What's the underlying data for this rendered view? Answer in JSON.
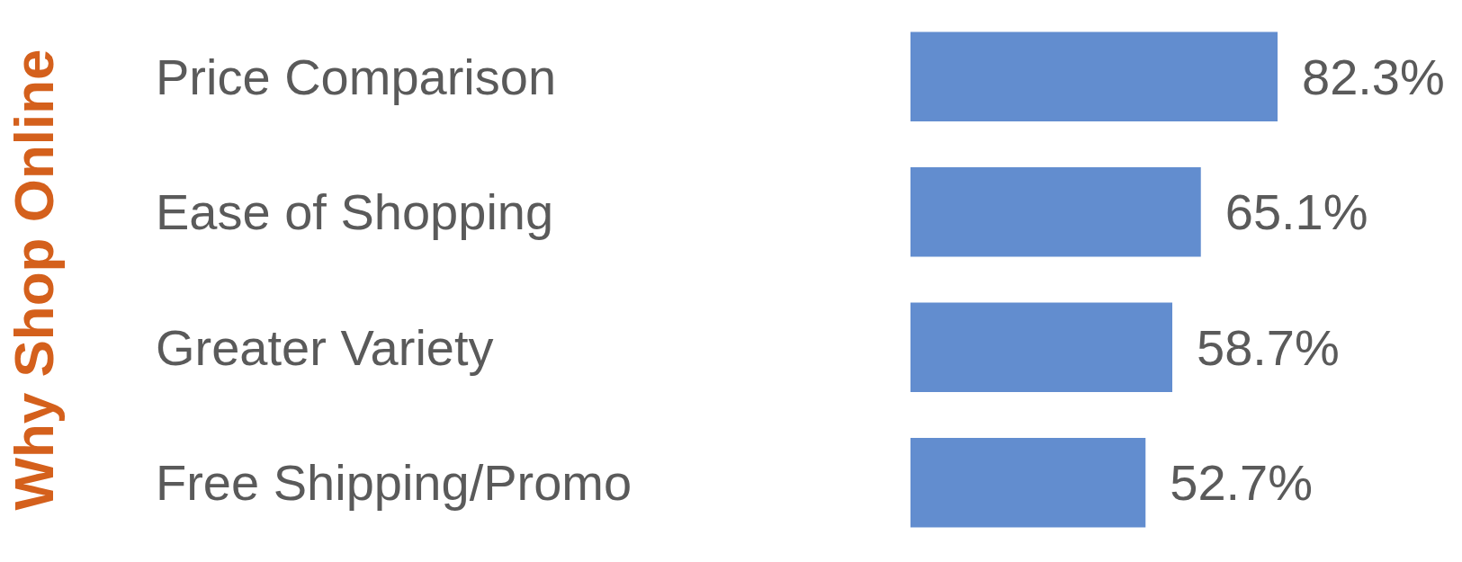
{
  "chart_data": {
    "type": "bar",
    "orientation": "horizontal",
    "ylabel": "Why Shop Online",
    "categories": [
      "Price Comparison",
      "Ease of Shopping",
      "Greater Variety",
      "Free Shipping/Promo"
    ],
    "values": [
      82.3,
      65.1,
      58.7,
      52.7
    ],
    "color": "#628dcf",
    "value_labels": [
      "82.3%",
      "65.1%",
      "58.7%",
      "52.7%"
    ],
    "grid": false,
    "tick_labels": "y"
  }
}
